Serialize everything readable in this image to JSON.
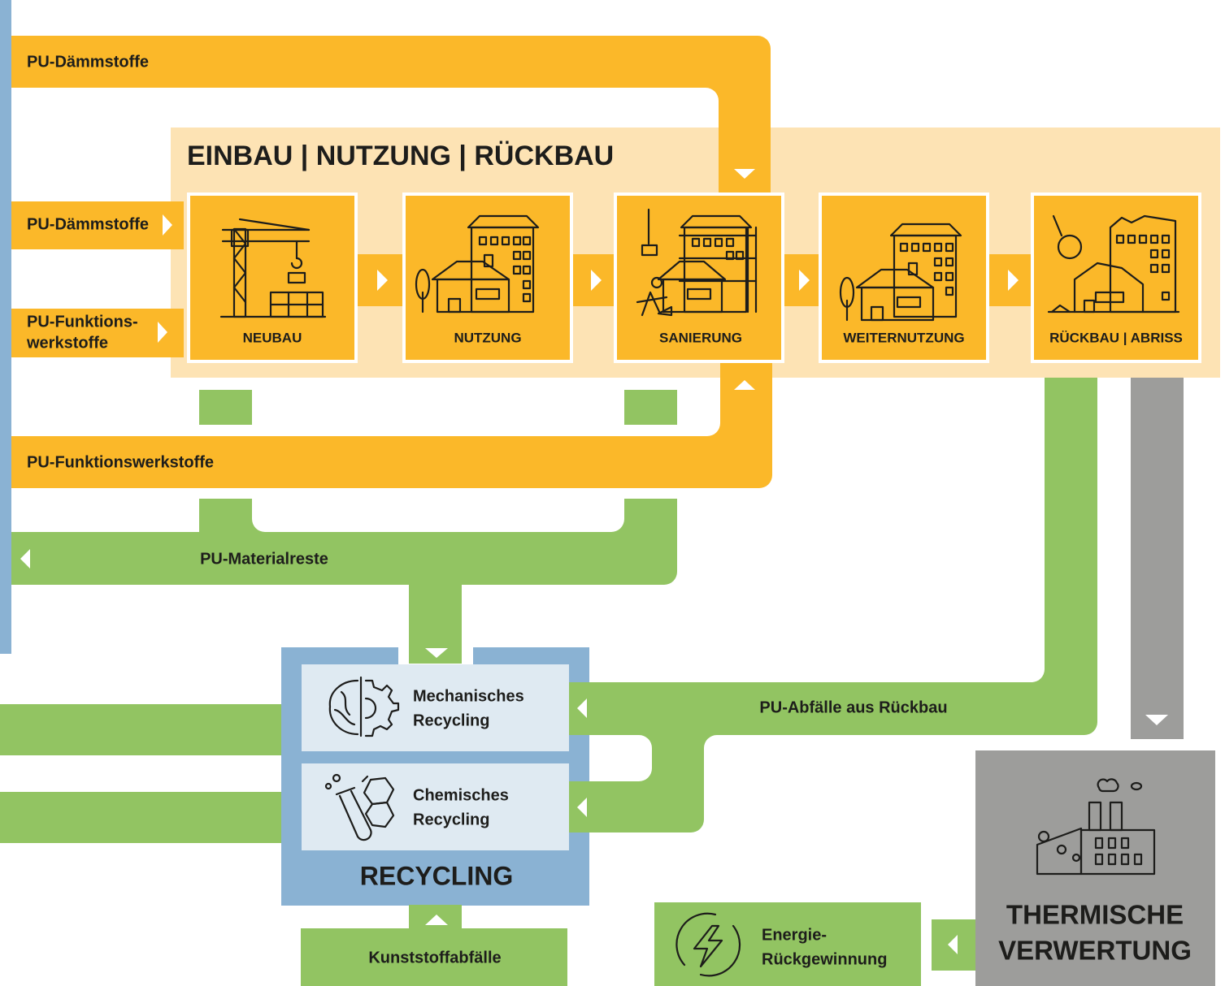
{
  "header": {
    "title": "EINBAU | NUTZUNG | RÜCKBAU"
  },
  "flows": {
    "top_input": "PU-Dämmstoffe",
    "bottom_input": "PU-Funktionswerkstoffe",
    "side_inputs": [
      [
        "PU-Dämmstoffe"
      ],
      [
        "PU-Funktions-",
        "werkstoffe"
      ]
    ],
    "material_rest": "PU-Materialreste",
    "demolition_waste": "PU-Abfälle aus Rückbau",
    "plastic_waste": "Kunststoffabfälle"
  },
  "stages": [
    "NEUBAU",
    "NUTZUNG",
    "SANIERUNG",
    "WEITERNUTZUNG",
    "RÜCKBAU | ABRISS"
  ],
  "recycling": {
    "title": "RECYCLING",
    "methods": [
      [
        "Mechanisches",
        "Recycling"
      ],
      [
        "Chemisches",
        "Recycling"
      ]
    ]
  },
  "thermal": {
    "title": [
      "THERMISCHE",
      "VERWERTUNG"
    ]
  },
  "energy": {
    "label": [
      "Energie-",
      "Rückgewinnung"
    ]
  }
}
